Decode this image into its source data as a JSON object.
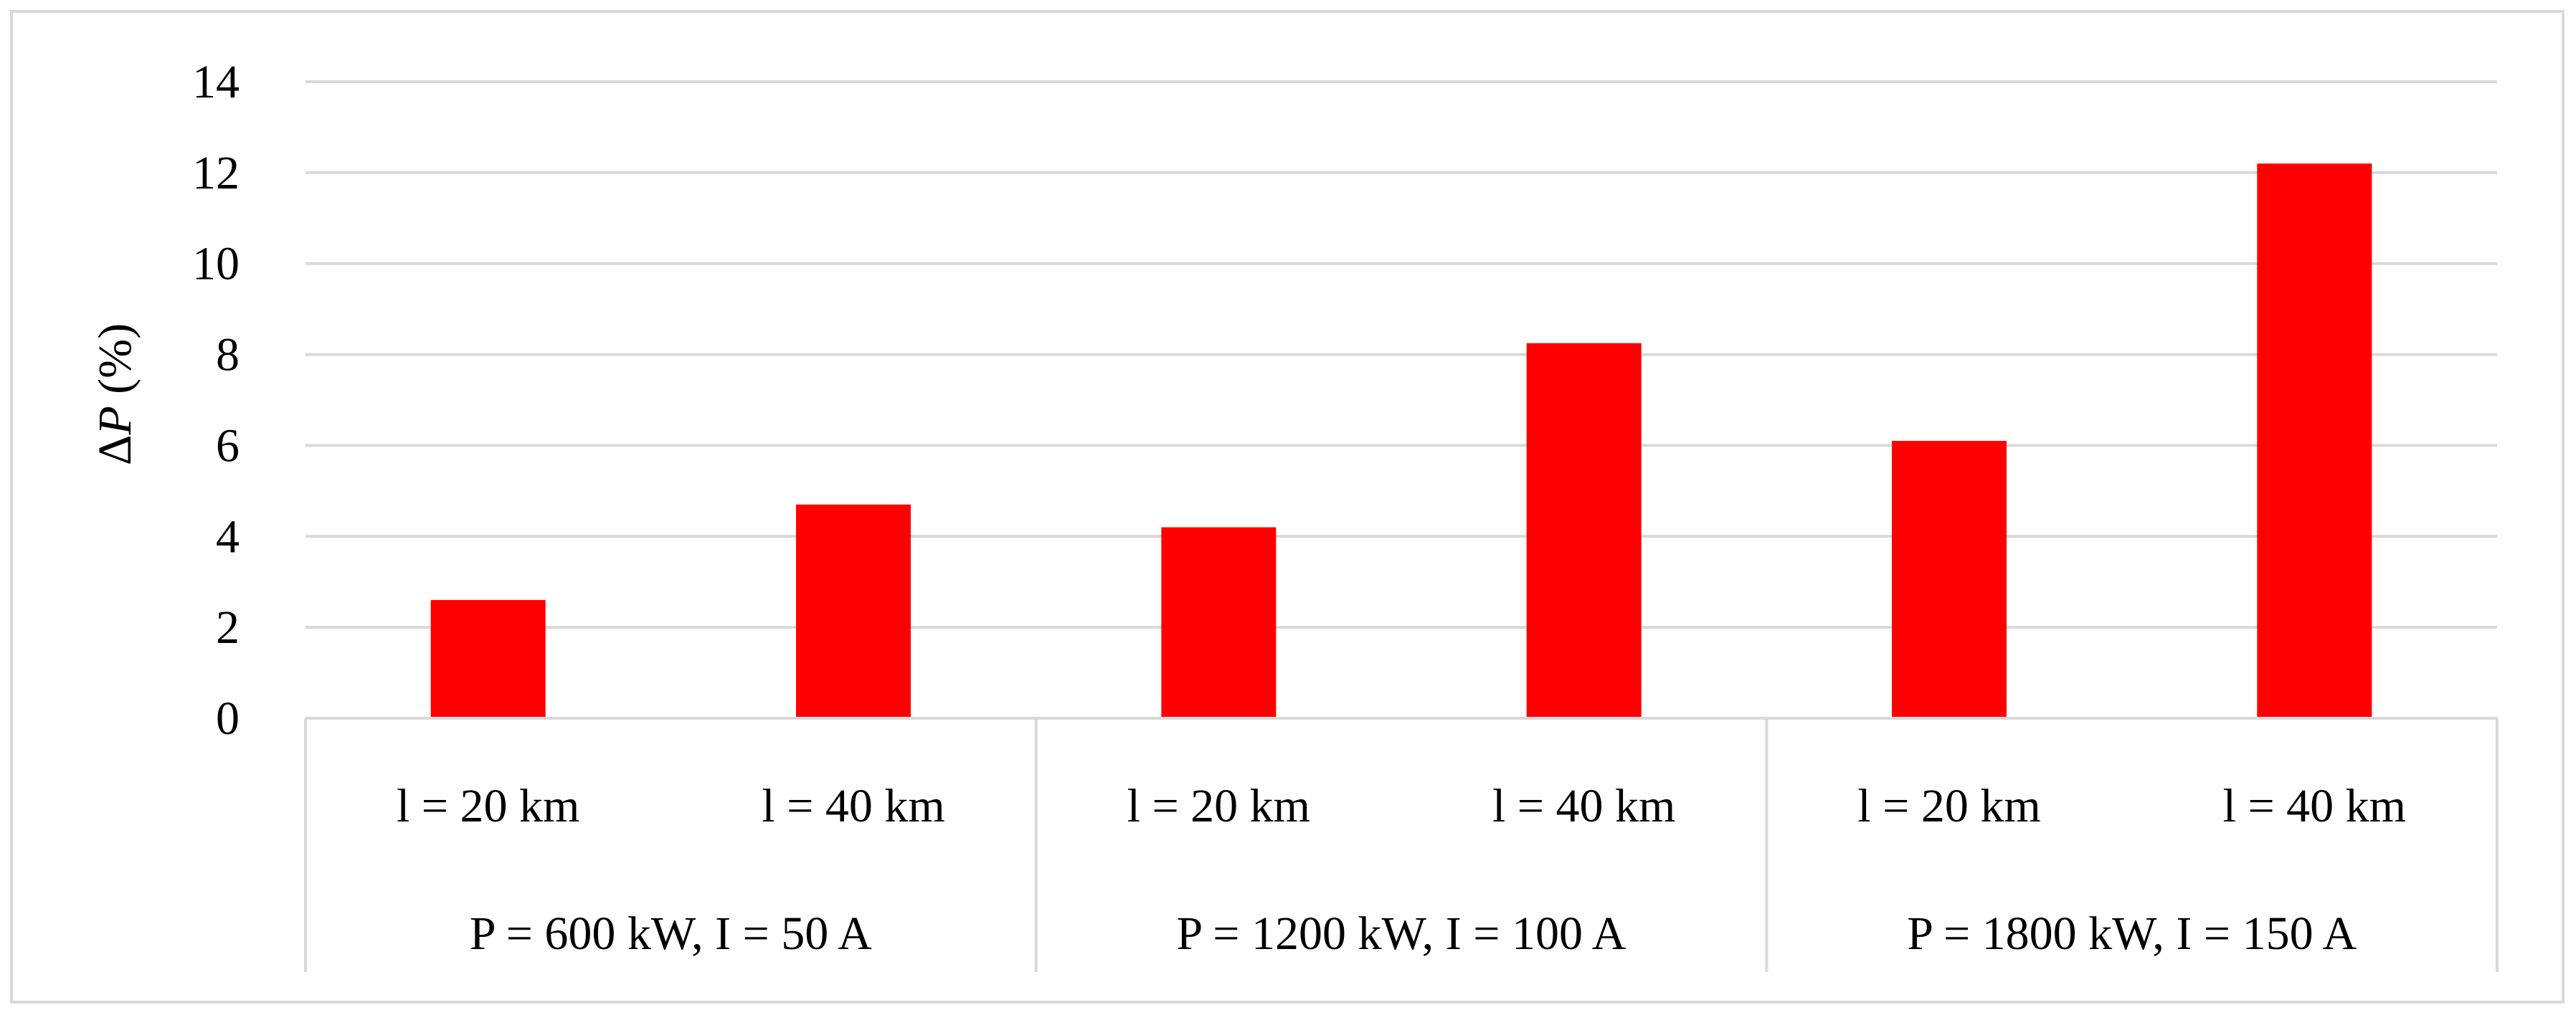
{
  "chart_data": {
    "type": "bar",
    "ylabel_prefix": "Δ",
    "ylabel_var": "P",
    "ylabel_suffix": " (%)",
    "ylim": [
      0,
      14
    ],
    "yticks": [
      0,
      2,
      4,
      6,
      8,
      10,
      12,
      14
    ],
    "grid": true,
    "legend": "none",
    "bar_color": "#ff0000",
    "groups": [
      {
        "label": "P = 600 kW, I = 50 A",
        "categories": [
          "l = 20 km",
          "l = 40 km"
        ],
        "values": [
          2.6,
          4.7
        ]
      },
      {
        "label": "P = 1200 kW, I = 100 A",
        "categories": [
          "l = 20 km",
          "l = 40 km"
        ],
        "values": [
          4.2,
          8.25
        ]
      },
      {
        "label": "P = 1800 kW, I = 150 A",
        "categories": [
          "l = 20 km",
          "l = 40 km"
        ],
        "values": [
          6.1,
          12.2
        ]
      }
    ]
  }
}
